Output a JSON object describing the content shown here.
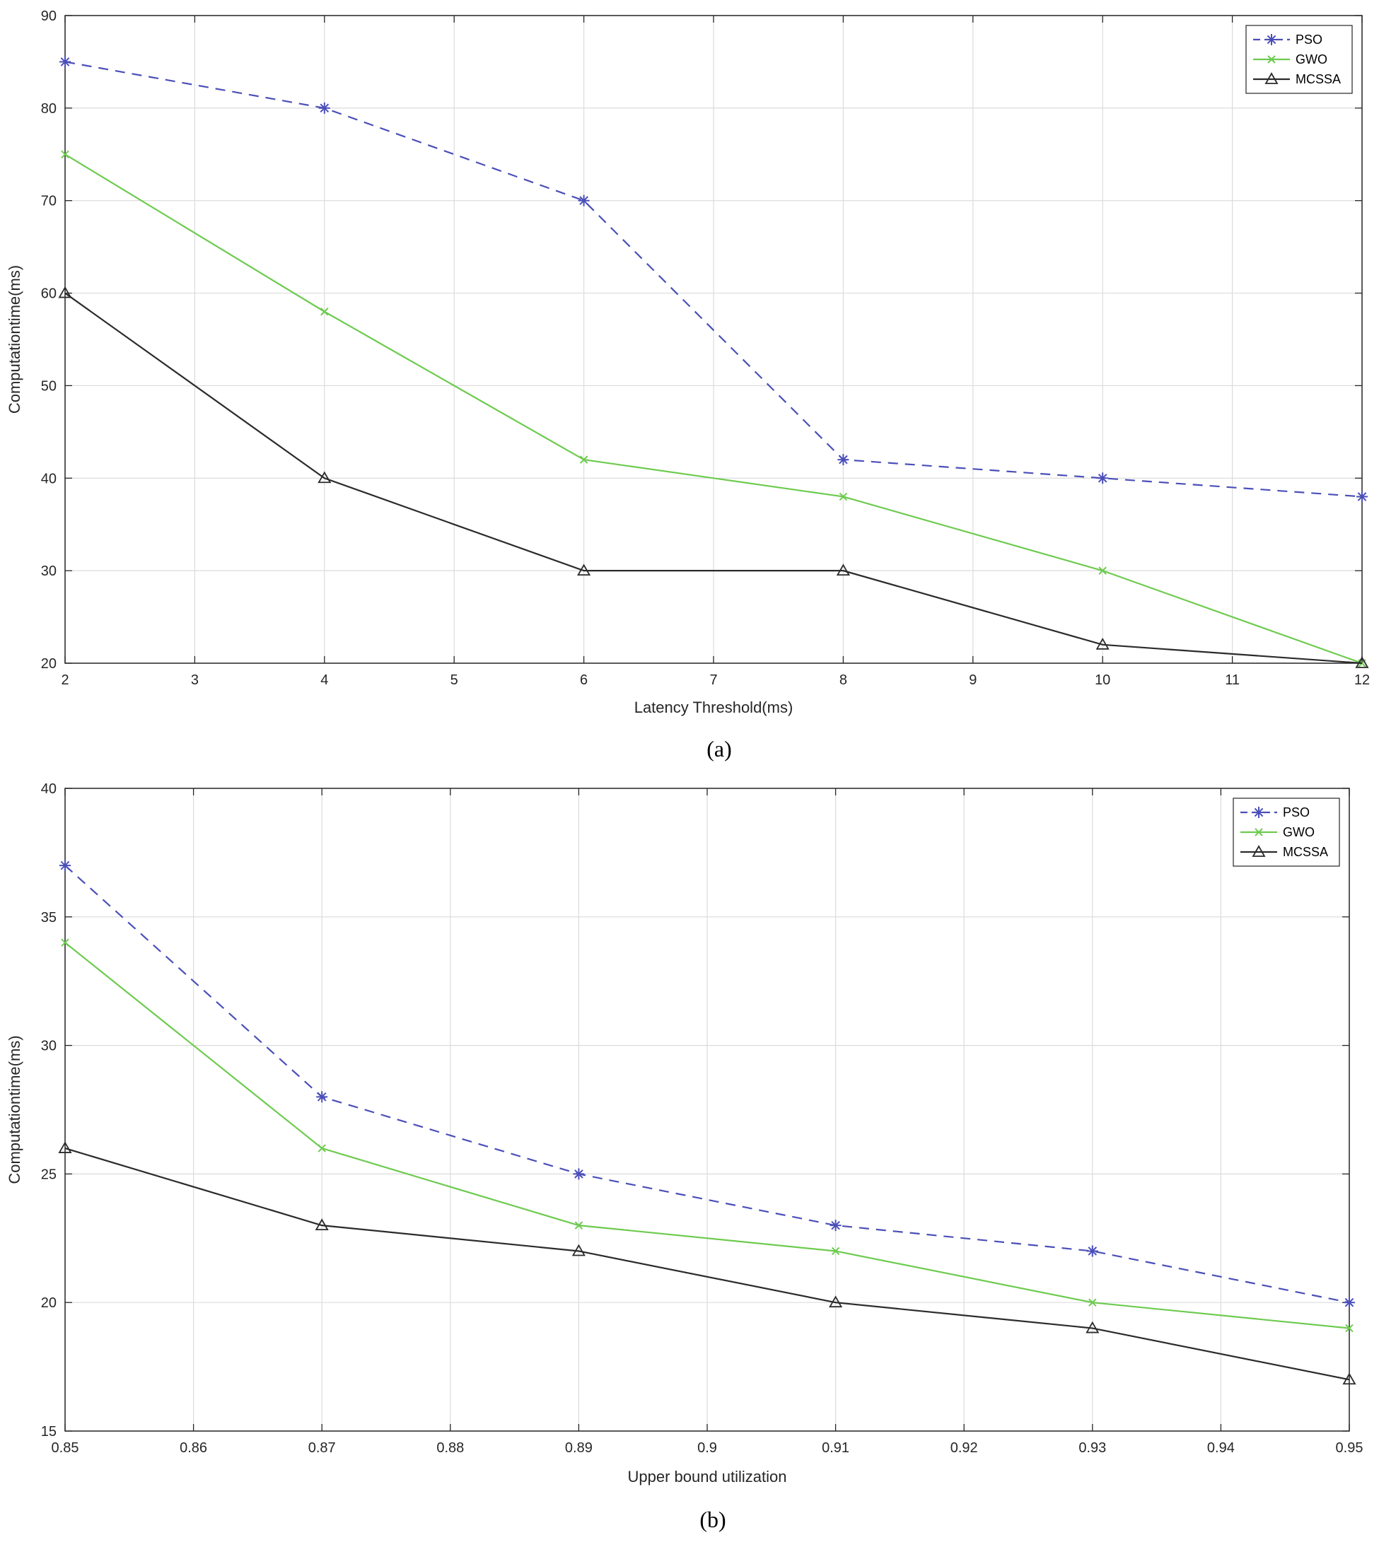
{
  "chart_data": [
    {
      "type": "line",
      "caption": "(a)",
      "xlabel": "Latency Threshold(ms)",
      "ylabel": "Computationtime(ms)",
      "xlim": [
        2,
        12
      ],
      "ylim": [
        20,
        90
      ],
      "xticks": [
        2,
        3,
        4,
        5,
        6,
        7,
        8,
        9,
        10,
        11,
        12
      ],
      "xtick_labels": [
        "2",
        "3",
        "4",
        "5",
        "6",
        "7",
        "8",
        "9",
        "10",
        "11",
        "12"
      ],
      "yticks": [
        20,
        30,
        40,
        50,
        60,
        70,
        80,
        90
      ],
      "ytick_labels": [
        "20",
        "30",
        "40",
        "50",
        "60",
        "70",
        "80",
        "90"
      ],
      "grid": true,
      "legend_position": "top-right",
      "x": [
        2,
        4,
        6,
        8,
        10,
        12
      ],
      "series": [
        {
          "name": "PSO",
          "values": [
            85,
            80,
            70,
            42,
            40,
            38
          ],
          "color": "#4B4FB8",
          "dash": "14,10",
          "marker": "asterisk"
        },
        {
          "name": "GWO",
          "values": [
            75,
            58,
            42,
            38,
            30,
            20
          ],
          "color": "#6DCB4F",
          "dash": "",
          "marker": "x"
        },
        {
          "name": "MCSSA",
          "values": [
            60,
            40,
            30,
            30,
            22,
            20
          ],
          "color": "#2B2B2B",
          "dash": "",
          "marker": "triangle"
        }
      ]
    },
    {
      "type": "line",
      "caption": "(b)",
      "xlabel": "Upper bound utilization",
      "ylabel": "Computationtime(ms)",
      "xlim": [
        0.85,
        0.95
      ],
      "ylim": [
        15,
        40
      ],
      "xticks": [
        0.85,
        0.86,
        0.87,
        0.88,
        0.89,
        0.9,
        0.91,
        0.92,
        0.93,
        0.94,
        0.95
      ],
      "xtick_labels": [
        "0.85",
        "0.86",
        "0.87",
        "0.88",
        "0.89",
        "0.9",
        "0.91",
        "0.92",
        "0.93",
        "0.94",
        "0.95"
      ],
      "yticks": [
        15,
        20,
        25,
        30,
        35,
        40
      ],
      "ytick_labels": [
        "15",
        "20",
        "25",
        "30",
        "35",
        "40"
      ],
      "grid": true,
      "legend_position": "top-right",
      "x": [
        0.85,
        0.87,
        0.89,
        0.91,
        0.93,
        0.95
      ],
      "series": [
        {
          "name": "PSO",
          "values": [
            37,
            28,
            25,
            23,
            22,
            20
          ],
          "color": "#4B4FB8",
          "dash": "14,10",
          "marker": "asterisk"
        },
        {
          "name": "GWO",
          "values": [
            34,
            26,
            23,
            22,
            20,
            19
          ],
          "color": "#6DCB4F",
          "dash": "",
          "marker": "x"
        },
        {
          "name": "MCSSA",
          "values": [
            26,
            23,
            22,
            20,
            19,
            17
          ],
          "color": "#2B2B2B",
          "dash": "",
          "marker": "triangle"
        }
      ]
    }
  ]
}
